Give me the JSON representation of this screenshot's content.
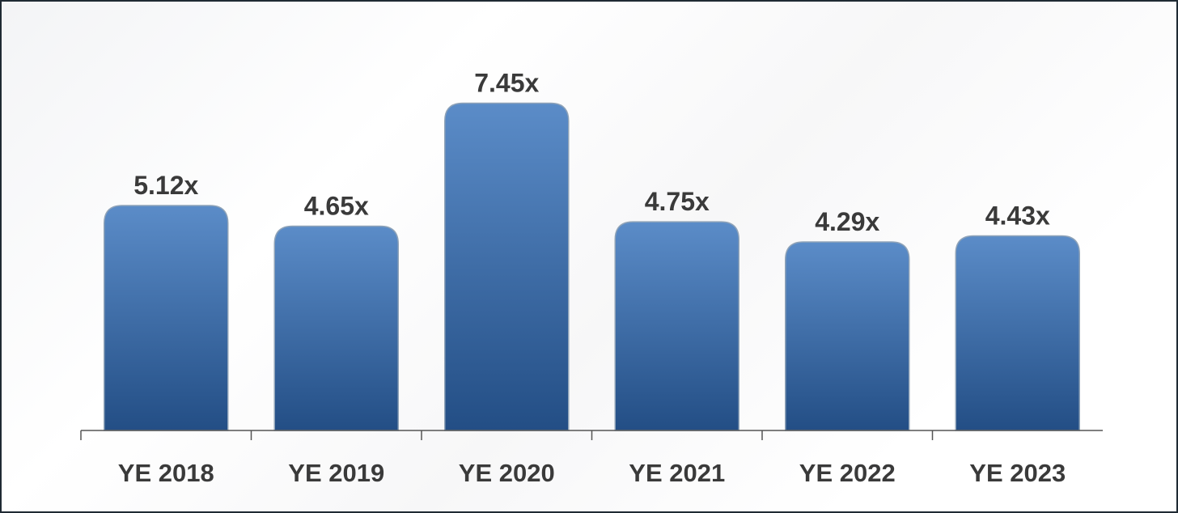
{
  "chart_data": {
    "type": "bar",
    "categories": [
      "YE 2018",
      "YE 2019",
      "YE 2020",
      "YE 2021",
      "YE 2022",
      "YE 2023"
    ],
    "values": [
      5.12,
      4.65,
      7.45,
      4.75,
      4.29,
      4.43
    ],
    "data_labels": [
      "5.12x",
      "4.65x",
      "7.45x",
      "4.75x",
      "4.29x",
      "4.43x"
    ],
    "title": "",
    "xlabel": "",
    "ylabel": "",
    "grid": false,
    "legend": "none",
    "colors": {
      "bar_top": "#5b8cc8",
      "bar_bottom": "#234e85",
      "bar_border": "#8fa3b8",
      "label": "#3a3a3a",
      "axis": "#555555"
    }
  }
}
